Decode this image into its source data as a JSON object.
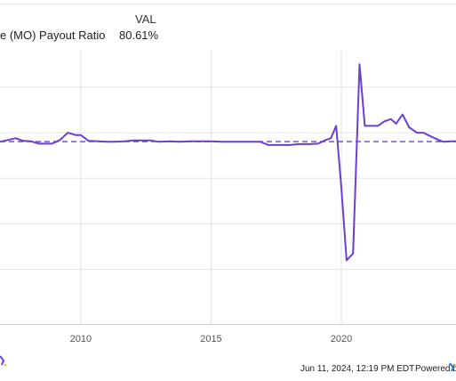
{
  "legend": {
    "header": "VAL",
    "series_name": "e (MO) Payout Ratio",
    "series_value": "80.61%"
  },
  "footer": {
    "timestamp": "Jun 11, 2024, 12:19 PM EDT",
    "powered_by": "Powered by"
  },
  "colors": {
    "series": "#6b3fd4",
    "grid": "#e3e3e3",
    "axis_text": "#555555"
  },
  "chart_data": {
    "type": "line",
    "x_ticks": [
      2010,
      2015,
      2020
    ],
    "xlim": [
      2006.9,
      2024.4
    ],
    "ylim": [
      -320,
      280
    ],
    "y_gridlines": [
      200,
      100,
      0,
      -100,
      -200
    ],
    "reference_value": 80.61,
    "series": [
      {
        "x": [
          2006.9,
          2007.2,
          2007.5,
          2007.8,
          2008.1,
          2008.4,
          2008.7,
          2008.9,
          2009.2,
          2009.5,
          2009.8,
          2010.0,
          2010.3,
          2010.7,
          2011.0,
          2011.3,
          2011.7,
          2012.0,
          2012.3,
          2012.7,
          2013.0,
          2013.4,
          2013.8,
          2014.2,
          2014.6,
          2015.0,
          2015.4,
          2015.8,
          2016.2,
          2016.6,
          2016.9,
          2017.2,
          2017.6,
          2018.0,
          2018.4,
          2018.8,
          2019.1,
          2019.4,
          2019.6,
          2019.8,
          2020.0,
          2020.2,
          2020.45,
          2020.7,
          2020.9,
          2021.1,
          2021.4,
          2021.65,
          2021.9,
          2022.1,
          2022.35,
          2022.6,
          2022.9,
          2023.15,
          2023.5,
          2023.9,
          2024.2,
          2024.4
        ],
        "y": [
          80,
          84,
          88,
          82,
          81,
          76,
          76,
          76,
          84,
          100,
          95,
          95,
          82,
          81,
          80,
          80,
          81,
          83,
          83,
          83,
          80,
          81,
          80,
          81,
          81,
          81,
          80,
          80,
          80,
          80,
          80,
          73,
          73,
          73,
          75,
          75,
          76,
          84,
          88,
          115,
          -20,
          -180,
          -165,
          250,
          115,
          115,
          115,
          125,
          130,
          120,
          140,
          112,
          100,
          100,
          90,
          80,
          81,
          81
        ]
      }
    ]
  }
}
